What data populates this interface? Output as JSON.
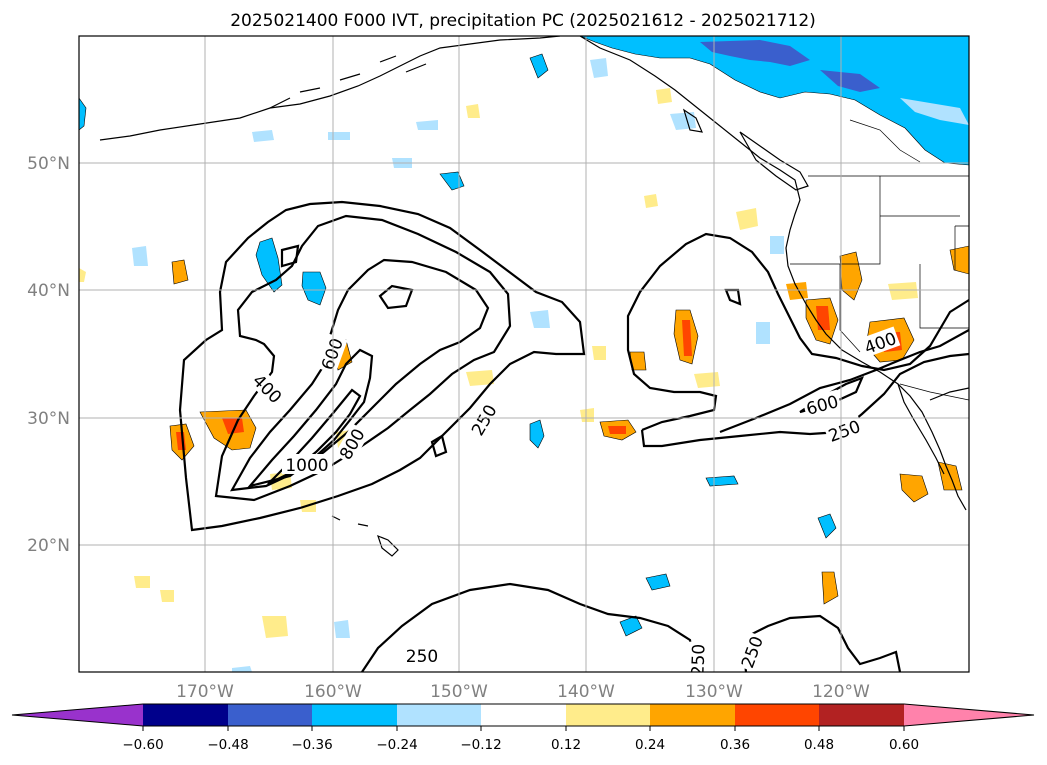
{
  "title": "2025021400 F000 IVT, precipitation PC (2025021612 - 2025021712)",
  "map": {
    "lon_range": [
      -180,
      -110
    ],
    "lat_range": [
      10,
      60
    ],
    "lon_ticks": [
      "170°W",
      "160°W",
      "150°W",
      "140°W",
      "130°W",
      "120°W"
    ],
    "lat_ticks": [
      "50°N",
      "40°N",
      "30°N",
      "20°N"
    ],
    "grid": true,
    "coastline_color": "#000000"
  },
  "ivt_contours": {
    "color": "#000000",
    "labels": [
      "400",
      "600",
      "1000",
      "800",
      "250",
      "250",
      "600",
      "400",
      "250",
      "250",
      "250"
    ]
  },
  "colorbar": {
    "orientation": "horizontal",
    "extend": "both",
    "tick_labels": [
      "−0.60",
      "−0.48",
      "−0.36",
      "−0.24",
      "−0.12",
      "0.12",
      "0.24",
      "0.36",
      "0.48",
      "0.60"
    ],
    "colors": [
      "#9932cc",
      "#00008b",
      "#3a5fcd",
      "#00bfff",
      "#b0e2ff",
      "#ffffff",
      "#ffec8b",
      "#ffa500",
      "#ff4500",
      "#b22222",
      "#ff82ab"
    ]
  }
}
